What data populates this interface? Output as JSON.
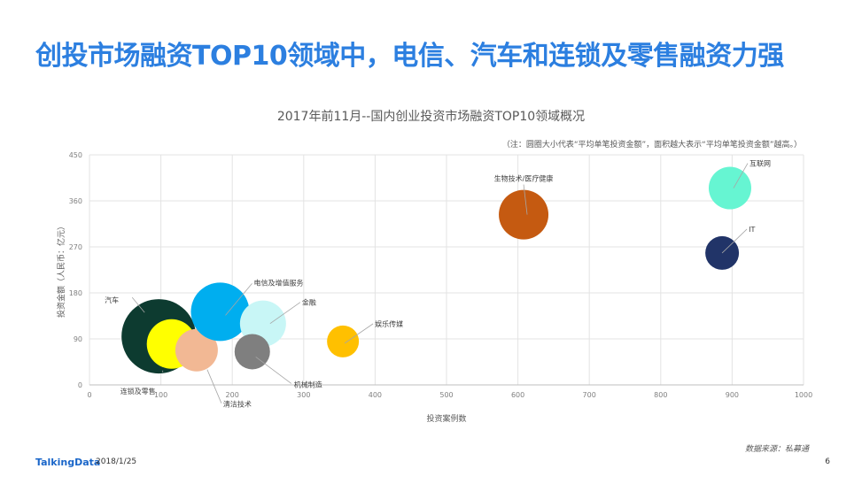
{
  "headline": "创投市场融资TOP10领域中，电信、汽车和连锁及零售融资力强",
  "footer": {
    "logo": "TalkingData",
    "date": "2018/1/25",
    "source": "数据来源：私募通",
    "page": "6"
  },
  "chart_data": {
    "type": "bubble",
    "title": "2017年前11月--国内创业投资市场融资TOP10领域概况",
    "note": "（注：圆圈大小代表“平均单笔投资金额”，面积越大表示“平均单笔投资金额”越高。）",
    "xlabel": "投资案例数",
    "ylabel": "投资金额（人民币：亿元）",
    "xlim": [
      0,
      1000
    ],
    "ylim": [
      0,
      450
    ],
    "xticks": [
      "0",
      "100",
      "200",
      "300",
      "400",
      "500",
      "600",
      "700",
      "800",
      "900",
      "1000"
    ],
    "yticks": [
      "0",
      "90",
      "180",
      "270",
      "360",
      "450"
    ],
    "grid": true,
    "points": [
      {
        "name": "汽车",
        "x": 97,
        "y": 95,
        "size": 42,
        "color": "#0d3b30"
      },
      {
        "name": "连锁及零售",
        "x": 115,
        "y": 80,
        "size": 28,
        "color": "#ffff00"
      },
      {
        "name": "清洁技术",
        "x": 150,
        "y": 68,
        "size": 24,
        "color": "#f2b894"
      },
      {
        "name": "电信及增值服务",
        "x": 183,
        "y": 143,
        "size": 33,
        "color": "#00aeef"
      },
      {
        "name": "金融",
        "x": 243,
        "y": 120,
        "size": 26,
        "color": "#c8f6f6"
      },
      {
        "name": "机械制造",
        "x": 228,
        "y": 65,
        "size": 20,
        "color": "#7f7f7f"
      },
      {
        "name": "娱乐传媒",
        "x": 355,
        "y": 85,
        "size": 18,
        "color": "#ffc000"
      },
      {
        "name": "生物技术/医疗健康",
        "x": 608,
        "y": 333,
        "size": 28,
        "color": "#c55a11"
      },
      {
        "name": "互联网",
        "x": 897,
        "y": 385,
        "size": 24,
        "color": "#66f5d2"
      },
      {
        "name": "IT",
        "x": 886,
        "y": 258,
        "size": 19,
        "color": "#213468"
      }
    ]
  }
}
